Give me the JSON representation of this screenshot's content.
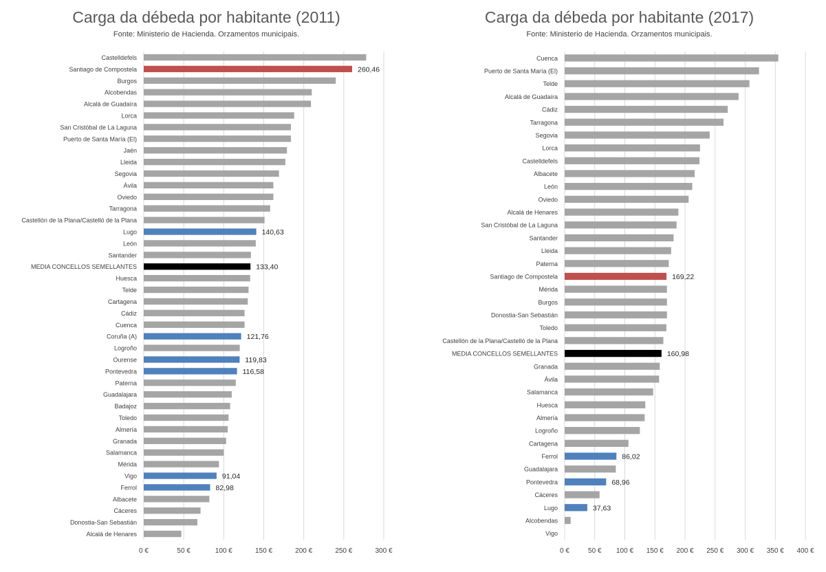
{
  "colors": {
    "default": "#a5a5a5",
    "highlight_red": "#c0504d",
    "highlight_blue": "#4f81bd",
    "average": "#000000",
    "grid": "#d9d9d9",
    "label": "#404040"
  },
  "chart_data": [
    {
      "type": "bar",
      "orientation": "horizontal",
      "title": "Carga da débeda por habitante (2011)",
      "subtitle": "Fonte:  Ministerio de Hacienda. Orzamentos municipais.",
      "xlim": [
        0,
        300
      ],
      "ticks": [
        0,
        50,
        100,
        150,
        200,
        250,
        300
      ],
      "tick_labels": [
        "0 €",
        "50 €",
        "100 €",
        "150 €",
        "200 €",
        "250 €",
        "300 €"
      ],
      "grid": true,
      "categories": [
        "Castelldefels",
        "Santiago de Compostela",
        "Burgos",
        "Alcobendas",
        "Alcalá de Guadaíra",
        "Lorca",
        "San Cristóbal de La Laguna",
        "Puerto de Santa María (El)",
        "Jaén",
        "Lleida",
        "Segovia",
        "Ávila",
        "Oviedo",
        "Tarragona",
        "Castellón de la Plana/Castelló de la Plana",
        "Lugo",
        "León",
        "Santander",
        "MEDIA CONCELLOS SEMELLANTES",
        "Huesca",
        "Telde",
        "Cartagena",
        "Cádiz",
        "Cuenca",
        "Coruña (A)",
        "Logroño",
        "Ourense",
        "Pontevedra",
        "Paterna",
        "Guadalajara",
        "Badajoz",
        "Toledo",
        "Almería",
        "Granada",
        "Salamanca",
        "Mérida",
        "Vigo",
        "Ferrol",
        "Albacete",
        "Cáceres",
        "Donostia-San Sebastián",
        "Alcalá de Henares"
      ],
      "values": [
        278,
        260.46,
        240,
        210,
        209,
        188,
        184,
        184,
        179,
        177,
        169,
        162,
        162,
        158,
        151,
        140.63,
        140,
        134,
        133.4,
        133,
        131,
        130,
        126,
        126,
        121.76,
        120,
        119.83,
        116.58,
        115,
        110,
        108,
        106,
        105,
        103,
        100,
        94,
        91.04,
        82.98,
        82,
        71,
        67,
        47
      ],
      "colors": [
        "default",
        "highlight_red",
        "default",
        "default",
        "default",
        "default",
        "default",
        "default",
        "default",
        "default",
        "default",
        "default",
        "default",
        "default",
        "default",
        "highlight_blue",
        "default",
        "default",
        "average",
        "default",
        "default",
        "default",
        "default",
        "default",
        "highlight_blue",
        "default",
        "highlight_blue",
        "highlight_blue",
        "default",
        "default",
        "default",
        "default",
        "default",
        "default",
        "default",
        "default",
        "highlight_blue",
        "highlight_blue",
        "default",
        "default",
        "default",
        "default"
      ],
      "data_labels": [
        "",
        "260,46",
        "",
        "",
        "",
        "",
        "",
        "",
        "",
        "",
        "",
        "",
        "",
        "",
        "",
        "140,63",
        "",
        "",
        "133,40",
        "",
        "",
        "",
        "",
        "",
        "121,76",
        "",
        "119,83",
        "116,58",
        "",
        "",
        "",
        "",
        "",
        "",
        "",
        "",
        "91,04",
        "82,98",
        "",
        "",
        "",
        ""
      ]
    },
    {
      "type": "bar",
      "orientation": "horizontal",
      "title": "Carga da débeda por habitante (2017)",
      "subtitle": "Fonte:  Ministerio de Hacienda. Orzamentos municipais.",
      "xlim": [
        0,
        400
      ],
      "ticks": [
        0,
        50,
        100,
        150,
        200,
        250,
        300,
        350,
        400
      ],
      "tick_labels": [
        "0 €",
        "50 €",
        "100 €",
        "150 €",
        "200 €",
        "250 €",
        "300 €",
        "350 €",
        "400 €"
      ],
      "grid": true,
      "categories": [
        "Cuenca",
        "Puerto de Santa María (El)",
        "Telde",
        "Alcalá de Guadaíra",
        "Cádiz",
        "Tarragona",
        "Segovia",
        "Lorca",
        "Castelldefels",
        "Albacete",
        "León",
        "Oviedo",
        "Alcalá de Henares",
        "San Cristóbal de La Laguna",
        "Santander",
        "Lleida",
        "Paterna",
        "Santiago de Compostela",
        "Mérida",
        "Burgos",
        "Donostia-San Sebastián",
        "Toledo",
        "Castellón de la Plana/Castelló de la Plana",
        "MEDIA CONCELLOS SEMELLANTES",
        "Granada",
        "Ávila",
        "Salamanca",
        "Huesca",
        "Almería",
        "Logroño",
        "Cartagena",
        "Ferrol",
        "Guadalajara",
        "Pontevedra",
        "Cáceres",
        "Lugo",
        "Alcobendas",
        "Vigo"
      ],
      "values": [
        355,
        323,
        307,
        289,
        271,
        264,
        241,
        225,
        224,
        216,
        212,
        206,
        189,
        186,
        181,
        177,
        173,
        169.22,
        170,
        170,
        170,
        169,
        164,
        160.98,
        158,
        157,
        147,
        134,
        133,
        125,
        106,
        86.02,
        85,
        68.96,
        58,
        37.63,
        10,
        0
      ],
      "colors": [
        "default",
        "default",
        "default",
        "default",
        "default",
        "default",
        "default",
        "default",
        "default",
        "default",
        "default",
        "default",
        "default",
        "default",
        "default",
        "default",
        "default",
        "highlight_red",
        "default",
        "default",
        "default",
        "default",
        "default",
        "average",
        "default",
        "default",
        "default",
        "default",
        "default",
        "default",
        "default",
        "highlight_blue",
        "default",
        "highlight_blue",
        "default",
        "highlight_blue",
        "default",
        "default"
      ],
      "data_labels": [
        "",
        "",
        "",
        "",
        "",
        "",
        "",
        "",
        "",
        "",
        "",
        "",
        "",
        "",
        "",
        "",
        "",
        "169,22",
        "",
        "",
        "",
        "",
        "",
        "160,98",
        "",
        "",
        "",
        "",
        "",
        "",
        "",
        "86,02",
        "",
        "68,96",
        "",
        "37,63",
        "",
        ""
      ]
    }
  ]
}
